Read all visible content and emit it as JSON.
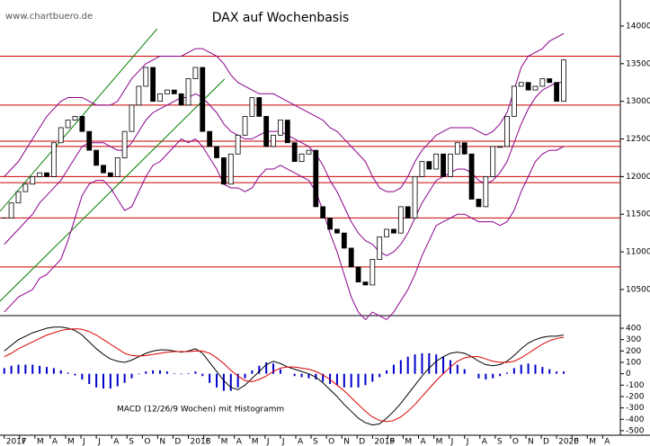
{
  "source": "www.chartbuero.de",
  "chart_data": [
    {
      "type": "candlestick",
      "title": "DAX auf Wochenbasis",
      "closes": [
        11450,
        11650,
        11800,
        11900,
        12000,
        12050,
        12000,
        12450,
        12650,
        12750,
        12800,
        12600,
        12350,
        12150,
        12050,
        12000,
        12250,
        12600,
        12950,
        13200,
        13450,
        13000,
        13100,
        13150,
        13100,
        12950,
        13300,
        13450,
        12600,
        12400,
        12250,
        11900,
        12300,
        12550,
        12800,
        13050,
        12800,
        12400,
        12550,
        12750,
        12450,
        12200,
        12300,
        12350,
        11600,
        11450,
        11300,
        11250,
        11050,
        10800,
        10600,
        10560,
        10900,
        11200,
        11300,
        11250,
        11600,
        11450,
        12000,
        12200,
        12100,
        12300,
        12000,
        12300,
        12450,
        12300,
        11700,
        11600,
        12000,
        12400,
        12400,
        12800,
        13200,
        13250,
        13150,
        13200,
        13300,
        13250,
        13000,
        13550
      ],
      "bands": [
        {
          "color": "#8b008b",
          "values": [
            12000,
            12100,
            12200,
            12350,
            12500,
            12650,
            12800,
            12900,
            13000,
            13050,
            13050,
            13050,
            13000,
            12950,
            12950,
            12950,
            13000,
            13150,
            13300,
            13400,
            13500,
            13550,
            13600,
            13600,
            13600,
            13600,
            13650,
            13700,
            13700,
            13650,
            13600,
            13500,
            13350,
            13250,
            13200,
            13150,
            13100,
            13100,
            13100,
            13050,
            13000,
            12950,
            12900,
            12850,
            12800,
            12750,
            12650,
            12600,
            12500,
            12400,
            12300,
            12200,
            12000,
            11850,
            11800,
            11800,
            11850,
            12000,
            12200,
            12350,
            12450,
            12550,
            12600,
            12650,
            12650,
            12650,
            12650,
            12600,
            12550,
            12600,
            12700,
            12850,
            13150,
            13450,
            13600,
            13650,
            13700,
            13800,
            13850,
            13900
          ]
        },
        {
          "color": "#8b008b",
          "values": [
            11100,
            11200,
            11300,
            11400,
            11500,
            11650,
            11750,
            11850,
            11950,
            12100,
            12250,
            12400,
            12450,
            12450,
            12450,
            12400,
            12350,
            12350,
            12450,
            12600,
            12750,
            12850,
            12900,
            12950,
            13000,
            13050,
            13050,
            13100,
            13050,
            12950,
            12850,
            12700,
            12600,
            12550,
            12500,
            12500,
            12550,
            12600,
            12600,
            12600,
            12550,
            12500,
            12450,
            12400,
            12300,
            12150,
            11950,
            11800,
            11600,
            11400,
            11250,
            11150,
            11100,
            11000,
            10950,
            11000,
            11100,
            11250,
            11450,
            11650,
            11800,
            11950,
            12000,
            12050,
            12100,
            12100,
            12050,
            11950,
            11900,
            11950,
            12050,
            12200,
            12450,
            12700,
            12900,
            13050,
            13150,
            13200,
            13250,
            13250
          ]
        },
        {
          "color": "#8b008b",
          "values": [
            10200,
            10300,
            10400,
            10450,
            10500,
            10650,
            10700,
            10800,
            10900,
            11150,
            11450,
            11750,
            11900,
            11950,
            11950,
            11850,
            11700,
            11550,
            11600,
            11800,
            12000,
            12150,
            12200,
            12300,
            12400,
            12500,
            12450,
            12500,
            12400,
            12250,
            12100,
            11900,
            11850,
            11850,
            11800,
            11850,
            12000,
            12100,
            12100,
            12150,
            12100,
            12050,
            12000,
            11950,
            11800,
            11550,
            11250,
            11000,
            10700,
            10400,
            10200,
            10100,
            10200,
            10150,
            10100,
            10200,
            10350,
            10500,
            10700,
            10950,
            11150,
            11350,
            11400,
            11450,
            11500,
            11500,
            11450,
            11400,
            11400,
            11400,
            11350,
            11400,
            11550,
            11800,
            12000,
            12200,
            12300,
            12350,
            12350,
            12400
          ]
        }
      ],
      "hlines": [
        13600,
        12950,
        12470,
        12400,
        12000,
        11920,
        11450,
        10800
      ],
      "hline_color": "#cc0000",
      "trend_lines": [
        {
          "color": "#008000",
          "x": [
            -0.6,
            21.6
          ],
          "y": [
            11539,
            13964
          ]
        },
        {
          "color": "#008000",
          "x": [
            -0.6,
            31.1
          ],
          "y": [
            10344,
            13295
          ]
        }
      ],
      "ylim": [
        10165,
        14346
      ],
      "yticks": [
        10500,
        11000,
        11500,
        12000,
        12500,
        13000,
        13500,
        14000
      ],
      "xlim": [
        -0.6,
        87
      ]
    },
    {
      "type": "macd",
      "annotation": "MACD (12/26/9 Wochen) mit Histogramm",
      "series": [
        {
          "color": "#000000",
          "values": [
            200,
            250,
            300,
            330,
            360,
            380,
            400,
            410,
            410,
            400,
            380,
            340,
            280,
            220,
            170,
            130,
            110,
            100,
            120,
            150,
            180,
            200,
            210,
            210,
            200,
            190,
            200,
            220,
            180,
            100,
            20,
            -60,
            -120,
            -140,
            -100,
            -40,
            20,
            80,
            110,
            90,
            60,
            40,
            20,
            0,
            -30,
            -80,
            -140,
            -200,
            -270,
            -330,
            -390,
            -430,
            -450,
            -440,
            -390,
            -330,
            -260,
            -180,
            -100,
            -20,
            50,
            110,
            150,
            180,
            190,
            180,
            150,
            110,
            80,
            70,
            80,
            110,
            160,
            220,
            270,
            300,
            320,
            330,
            330,
            340
          ]
        },
        {
          "color": "#dd0000",
          "values": [
            150,
            180,
            220,
            250,
            280,
            310,
            340,
            360,
            380,
            390,
            395,
            390,
            370,
            340,
            300,
            260,
            220,
            180,
            160,
            155,
            160,
            170,
            180,
            190,
            195,
            195,
            195,
            200,
            200,
            180,
            140,
            90,
            30,
            -20,
            -60,
            -70,
            -50,
            -20,
            20,
            50,
            60,
            60,
            50,
            40,
            20,
            -10,
            -50,
            -100,
            -150,
            -210,
            -270,
            -330,
            -380,
            -410,
            -420,
            -410,
            -380,
            -330,
            -270,
            -200,
            -130,
            -60,
            0,
            60,
            110,
            140,
            150,
            150,
            130,
            110,
            100,
            100,
            110,
            140,
            180,
            220,
            260,
            290,
            310,
            320
          ]
        }
      ],
      "histogram": {
        "color": "#0000cc",
        "values": [
          50,
          70,
          80,
          80,
          80,
          70,
          60,
          50,
          30,
          10,
          -15,
          -50,
          -90,
          -120,
          -130,
          -130,
          -110,
          -80,
          -40,
          -5,
          20,
          30,
          30,
          20,
          5,
          -5,
          5,
          20,
          -20,
          -80,
          -120,
          -150,
          -150,
          -120,
          -40,
          30,
          70,
          100,
          90,
          40,
          0,
          -20,
          -30,
          -40,
          -50,
          -70,
          -90,
          -100,
          -120,
          -120,
          -120,
          -100,
          -70,
          -30,
          30,
          80,
          120,
          150,
          170,
          180,
          180,
          170,
          150,
          120,
          80,
          40,
          0,
          -40,
          -50,
          -40,
          -20,
          10,
          50,
          80,
          90,
          80,
          60,
          40,
          20,
          20
        ]
      },
      "ylim": [
        -532,
        503
      ],
      "yticks": [
        -500,
        -400,
        -300,
        -200,
        -100,
        0,
        100,
        200,
        300,
        400
      ],
      "xlim": [
        -0.6,
        87
      ],
      "xticks": [
        {
          "value": 0,
          "label": "2017"
        },
        {
          "value": 2.17,
          "label": "F"
        },
        {
          "value": 4.33,
          "label": "M"
        },
        {
          "value": 6.5,
          "label": "A"
        },
        {
          "value": 8.67,
          "label": "M"
        },
        {
          "value": 10.83,
          "label": "J"
        },
        {
          "value": 13,
          "label": "J"
        },
        {
          "value": 15.17,
          "label": "A"
        },
        {
          "value": 17.33,
          "label": "S"
        },
        {
          "value": 19.5,
          "label": "O"
        },
        {
          "value": 21.67,
          "label": "N"
        },
        {
          "value": 23.83,
          "label": "D"
        },
        {
          "value": 26,
          "label": "2018"
        },
        {
          "value": 28.17,
          "label": "F"
        },
        {
          "value": 30.33,
          "label": "M"
        },
        {
          "value": 32.5,
          "label": "A"
        },
        {
          "value": 34.67,
          "label": "M"
        },
        {
          "value": 36.83,
          "label": "J"
        },
        {
          "value": 39,
          "label": "J"
        },
        {
          "value": 41.17,
          "label": "A"
        },
        {
          "value": 43.33,
          "label": "S"
        },
        {
          "value": 45.5,
          "label": "O"
        },
        {
          "value": 47.67,
          "label": "N"
        },
        {
          "value": 49.83,
          "label": "D"
        },
        {
          "value": 52,
          "label": "2019"
        },
        {
          "value": 54.17,
          "label": "F"
        },
        {
          "value": 56.33,
          "label": "M"
        },
        {
          "value": 58.5,
          "label": "A"
        },
        {
          "value": 60.67,
          "label": "M"
        },
        {
          "value": 62.83,
          "label": "J"
        },
        {
          "value": 65,
          "label": "J"
        },
        {
          "value": 67.17,
          "label": "A"
        },
        {
          "value": 69.33,
          "label": "S"
        },
        {
          "value": 71.5,
          "label": "O"
        },
        {
          "value": 73.67,
          "label": "N"
        },
        {
          "value": 75.83,
          "label": "D"
        },
        {
          "value": 78,
          "label": "2020"
        },
        {
          "value": 80.17,
          "label": "F"
        },
        {
          "value": 82.33,
          "label": "M"
        },
        {
          "value": 84.5,
          "label": "A"
        }
      ]
    }
  ]
}
